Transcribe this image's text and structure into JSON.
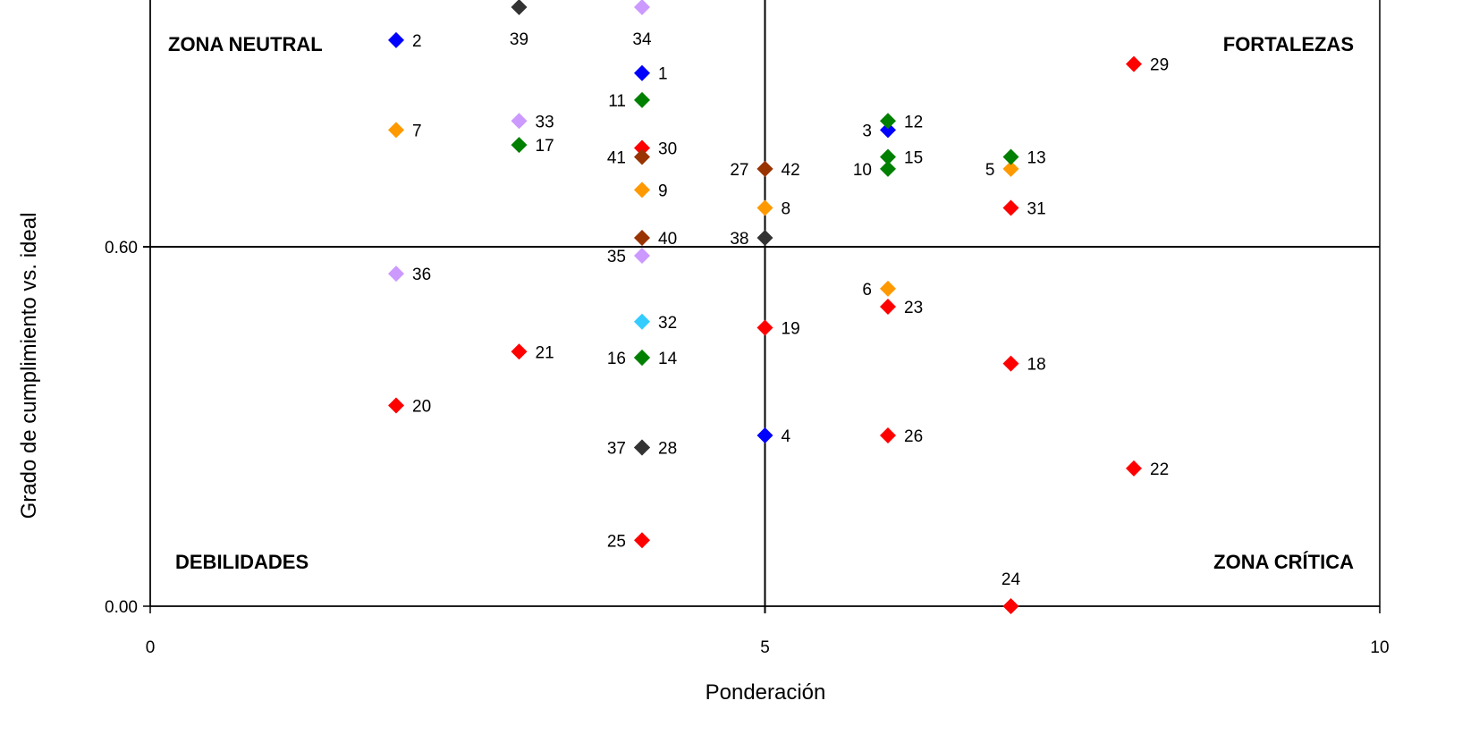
{
  "chart_data": {
    "type": "scatter",
    "xlabel": "Ponderación",
    "ylabel": "Grado de cumplimiento vs. ideal",
    "xlim": [
      0,
      10
    ],
    "ylim": [
      0,
      1.0
    ],
    "x_ticks": [
      "0",
      "5",
      "10"
    ],
    "y_ticks": [
      "0.00",
      "0.60"
    ],
    "reference_lines": {
      "x": 5,
      "y": 0.6
    },
    "grid": false,
    "legend": "none",
    "quadrants": {
      "top_left": "ZONA NEUTRAL",
      "top_right": "FORTALEZAS",
      "bottom_left": "DEBILIDADES",
      "bottom_right": "ZONA CRÍTICA"
    },
    "points": [
      {
        "id": "1",
        "x": 4,
        "y": 0.89,
        "color": "#0000ff",
        "label_side": "right"
      },
      {
        "id": "2",
        "x": 2,
        "y": 0.945,
        "color": "#0000ff",
        "label_side": "right"
      },
      {
        "id": "3",
        "x": 6,
        "y": 0.795,
        "color": "#0000ff",
        "label_side": "left"
      },
      {
        "id": "4",
        "x": 5,
        "y": 0.285,
        "color": "#0000ff",
        "label_side": "right"
      },
      {
        "id": "5",
        "x": 7,
        "y": 0.73,
        "color": "#ff9900",
        "label_side": "left"
      },
      {
        "id": "6",
        "x": 6,
        "y": 0.53,
        "color": "#ff9900",
        "label_side": "left"
      },
      {
        "id": "7",
        "x": 2,
        "y": 0.795,
        "color": "#ff9900",
        "label_side": "right"
      },
      {
        "id": "8",
        "x": 5,
        "y": 0.665,
        "color": "#ff9900",
        "label_side": "right"
      },
      {
        "id": "9",
        "x": 4,
        "y": 0.695,
        "color": "#ff9900",
        "label_side": "right"
      },
      {
        "id": "10",
        "x": 6,
        "y": 0.73,
        "color": "#008000",
        "label_side": "left"
      },
      {
        "id": "11",
        "x": 4,
        "y": 0.845,
        "color": "#008000",
        "label_side": "left"
      },
      {
        "id": "12",
        "x": 6,
        "y": 0.81,
        "color": "#008000",
        "label_side": "right"
      },
      {
        "id": "13",
        "x": 7,
        "y": 0.75,
        "color": "#008000",
        "label_side": "right"
      },
      {
        "id": "14",
        "x": 4,
        "y": 0.415,
        "color": "#008000",
        "label_side": "right"
      },
      {
        "id": "15",
        "x": 6,
        "y": 0.75,
        "color": "#008000",
        "label_side": "right"
      },
      {
        "id": "16",
        "x": 4,
        "y": 0.415,
        "color": "#008000",
        "label_side": "left"
      },
      {
        "id": "17",
        "x": 3,
        "y": 0.77,
        "color": "#008000",
        "label_side": "right"
      },
      {
        "id": "18",
        "x": 7,
        "y": 0.405,
        "color": "#ff0000",
        "label_side": "right"
      },
      {
        "id": "19",
        "x": 5,
        "y": 0.465,
        "color": "#ff0000",
        "label_side": "right"
      },
      {
        "id": "20",
        "x": 2,
        "y": 0.335,
        "color": "#ff0000",
        "label_side": "right"
      },
      {
        "id": "21",
        "x": 3,
        "y": 0.425,
        "color": "#ff0000",
        "label_side": "right"
      },
      {
        "id": "22",
        "x": 8,
        "y": 0.23,
        "color": "#ff0000",
        "label_side": "right"
      },
      {
        "id": "23",
        "x": 6,
        "y": 0.5,
        "color": "#ff0000",
        "label_side": "right"
      },
      {
        "id": "24",
        "x": 7,
        "y": 0.0,
        "color": "#ff0000",
        "label_side": "above"
      },
      {
        "id": "25",
        "x": 4,
        "y": 0.11,
        "color": "#ff0000",
        "label_side": "left"
      },
      {
        "id": "26",
        "x": 6,
        "y": 0.285,
        "color": "#ff0000",
        "label_side": "right"
      },
      {
        "id": "27",
        "x": 5,
        "y": 0.73,
        "color": "#993300",
        "label_side": "left"
      },
      {
        "id": "28",
        "x": 4,
        "y": 0.265,
        "color": "#333333",
        "label_side": "right"
      },
      {
        "id": "29",
        "x": 8,
        "y": 0.905,
        "color": "#ff0000",
        "label_side": "right"
      },
      {
        "id": "30",
        "x": 4,
        "y": 0.765,
        "color": "#ff0000",
        "label_side": "right"
      },
      {
        "id": "31",
        "x": 7,
        "y": 0.665,
        "color": "#ff0000",
        "label_side": "right"
      },
      {
        "id": "32",
        "x": 4,
        "y": 0.475,
        "color": "#33ccff",
        "label_side": "right"
      },
      {
        "id": "33",
        "x": 3,
        "y": 0.81,
        "color": "#cc99ff",
        "label_side": "right"
      },
      {
        "id": "34",
        "x": 4,
        "y": 1.0,
        "color": "#cc99ff",
        "label_side": "below"
      },
      {
        "id": "35",
        "x": 4,
        "y": 0.585,
        "color": "#cc99ff",
        "label_side": "left"
      },
      {
        "id": "36",
        "x": 2,
        "y": 0.555,
        "color": "#cc99ff",
        "label_side": "right"
      },
      {
        "id": "37",
        "x": 4,
        "y": 0.265,
        "color": "#333333",
        "label_side": "left"
      },
      {
        "id": "38",
        "x": 5,
        "y": 0.615,
        "color": "#333333",
        "label_side": "left"
      },
      {
        "id": "39",
        "x": 3,
        "y": 1.0,
        "color": "#333333",
        "label_side": "below"
      },
      {
        "id": "40",
        "x": 4,
        "y": 0.615,
        "color": "#993300",
        "label_side": "right"
      },
      {
        "id": "41",
        "x": 4,
        "y": 0.75,
        "color": "#993300",
        "label_side": "left"
      },
      {
        "id": "42",
        "x": 5,
        "y": 0.73,
        "color": "#993300",
        "label_side": "right"
      }
    ]
  }
}
